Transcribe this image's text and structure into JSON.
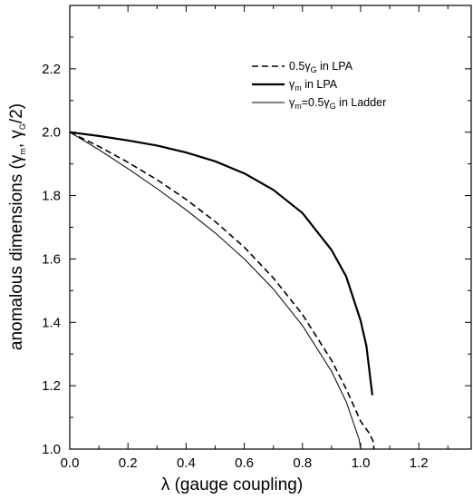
{
  "chart_data": {
    "type": "line",
    "xlabel_symbol": "λ",
    "xlabel_text": " (gauge coupling)",
    "ylabel_parts": {
      "pre": "anomalous dimensions (",
      "g1": "γ",
      "s1": "m",
      "mid": ", ",
      "g2": "γ",
      "s2": "G",
      "post": "/2)"
    },
    "xlim": [
      0.0,
      1.38
    ],
    "ylim": [
      1.0,
      2.4
    ],
    "x_ticks": [
      0.0,
      0.2,
      0.4,
      0.6,
      0.8,
      1.0,
      1.2
    ],
    "x_tick_labels": [
      "0.0",
      "0.2",
      "0.4",
      "0.6",
      "0.8",
      "1.0",
      "1.2"
    ],
    "y_ticks": [
      1.0,
      1.2,
      1.4,
      1.6,
      1.8,
      2.0,
      2.2
    ],
    "y_tick_labels": [
      "1.0",
      "1.2",
      "1.4",
      "1.6",
      "1.8",
      "2.0",
      "2.2"
    ],
    "grid": false,
    "legend_position": "top-right",
    "legend": [
      {
        "pre": "0.5",
        "g": "γ",
        "s": "G",
        "post": " in LPA",
        "style": "dashed"
      },
      {
        "pre": "",
        "g": "γ",
        "s": "m",
        "post": " in LPA",
        "style": "thick"
      },
      {
        "pre": "",
        "g": "γ",
        "s": "m",
        "post": "=0.5γ",
        "s2": "G",
        "post2": " in Ladder",
        "style": "thin"
      }
    ],
    "series": [
      {
        "style": "dashed",
        "x": [
          0.0,
          0.1,
          0.2,
          0.3,
          0.4,
          0.5,
          0.6,
          0.7,
          0.8,
          0.9,
          0.95,
          1.0,
          1.03,
          1.045,
          1.045
        ],
        "y": [
          2.0,
          1.955,
          1.905,
          1.85,
          1.788,
          1.718,
          1.637,
          1.54,
          1.425,
          1.28,
          1.19,
          1.088,
          1.05,
          1.02,
          1.0
        ]
      },
      {
        "style": "thick",
        "x": [
          0.0,
          0.1,
          0.2,
          0.3,
          0.4,
          0.5,
          0.6,
          0.7,
          0.8,
          0.9,
          0.95,
          1.0,
          1.02,
          1.04
        ],
        "y": [
          2.0,
          1.988,
          1.974,
          1.958,
          1.936,
          1.908,
          1.87,
          1.818,
          1.745,
          1.628,
          1.545,
          1.405,
          1.325,
          1.17
        ]
      },
      {
        "style": "thin",
        "x": [
          0.0,
          0.1,
          0.2,
          0.3,
          0.4,
          0.5,
          0.6,
          0.7,
          0.8,
          0.9,
          0.95,
          0.98,
          0.995,
          1.0
        ],
        "y": [
          2.0,
          1.945,
          1.885,
          1.822,
          1.755,
          1.682,
          1.6,
          1.505,
          1.39,
          1.245,
          1.15,
          1.07,
          1.03,
          1.0
        ]
      }
    ]
  }
}
